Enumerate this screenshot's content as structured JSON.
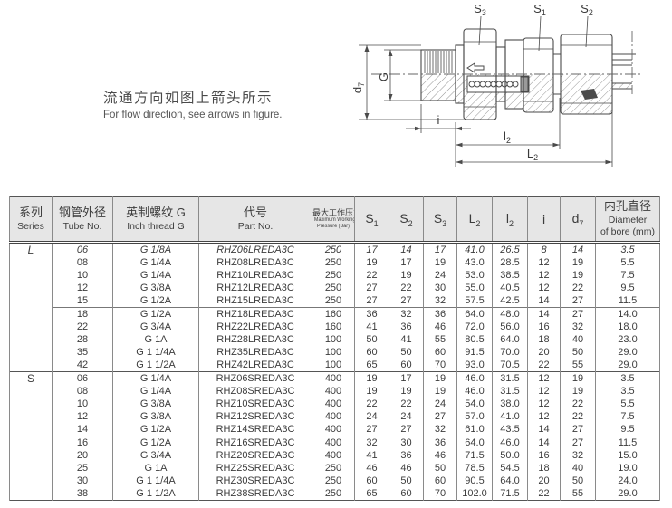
{
  "colors": {
    "header_bg": "#e6e6e6",
    "table_line": "#8a8a8a",
    "text": "#3c3c3c",
    "drawing_line": "#4a4a4a"
  },
  "note": {
    "zh": "流通方向如图上箭头所示",
    "en": "For flow direction, see arrows in figure."
  },
  "diagram": {
    "labels": {
      "s3": {
        "base": "S",
        "sub": "3"
      },
      "s1": {
        "base": "S",
        "sub": "1"
      },
      "s2": {
        "base": "S",
        "sub": "2"
      },
      "d7": {
        "base": "d",
        "sub": "7"
      },
      "g": {
        "base": "G",
        "sub": ""
      },
      "i": {
        "base": "i",
        "sub": ""
      },
      "l2": {
        "base": "l",
        "sub": "2"
      },
      "L2": {
        "base": "L",
        "sub": "2"
      }
    }
  },
  "table": {
    "columns": [
      {
        "zh": "系列",
        "en": "Series"
      },
      {
        "zh": "钢管外径",
        "en": "Tube No."
      },
      {
        "zh": "英制螺纹 G",
        "en": "Inch thread G"
      },
      {
        "zh": "代号",
        "en": "Part No."
      },
      {
        "zh": "最大工作压力",
        "en": "Maximum Working",
        "en2": "Pressure (Bar)",
        "small": true
      },
      {
        "base": "S",
        "sub": "1"
      },
      {
        "base": "S",
        "sub": "2"
      },
      {
        "base": "S",
        "sub": "3"
      },
      {
        "base": "L",
        "sub": "2"
      },
      {
        "base": "l",
        "sub": "2"
      },
      {
        "base": "i",
        "sub": ""
      },
      {
        "base": "d",
        "sub": "7"
      },
      {
        "zh": "内孔直径",
        "en": "Diameter",
        "en2": "of bore (mm)"
      }
    ],
    "groups": [
      {
        "series": "L",
        "blocks": [
          {
            "rows": [
              {
                "italic": true,
                "cells": [
                  "06",
                  "G 1/8A",
                  "RHZ06LREDA3C",
                  "250",
                  "17",
                  "14",
                  "17",
                  "41.0",
                  "26.5",
                  "8",
                  "14",
                  "3.5"
                ]
              },
              {
                "cells": [
                  "08",
                  "G 1/4A",
                  "RHZ08LREDA3C",
                  "250",
                  "19",
                  "17",
                  "19",
                  "43.0",
                  "28.5",
                  "12",
                  "19",
                  "5.5"
                ]
              },
              {
                "cells": [
                  "10",
                  "G 1/4A",
                  "RHZ10LREDA3C",
                  "250",
                  "22",
                  "19",
                  "24",
                  "53.0",
                  "38.5",
                  "12",
                  "19",
                  "7.5"
                ]
              },
              {
                "cells": [
                  "12",
                  "G 3/8A",
                  "RHZ12LREDA3C",
                  "250",
                  "27",
                  "22",
                  "30",
                  "55.0",
                  "40.5",
                  "12",
                  "22",
                  "9.5"
                ]
              },
              {
                "cells": [
                  "15",
                  "G 1/2A",
                  "RHZ15LREDA3C",
                  "250",
                  "27",
                  "27",
                  "32",
                  "57.5",
                  "42.5",
                  "14",
                  "27",
                  "11.5"
                ]
              }
            ]
          },
          {
            "rows": [
              {
                "cells": [
                  "18",
                  "G 1/2A",
                  "RHZ18LREDA3C",
                  "160",
                  "36",
                  "32",
                  "36",
                  "64.0",
                  "48.0",
                  "14",
                  "27",
                  "14.0"
                ]
              },
              {
                "cells": [
                  "22",
                  "G 3/4A",
                  "RHZ22LREDA3C",
                  "160",
                  "41",
                  "36",
                  "46",
                  "72.0",
                  "56.0",
                  "16",
                  "32",
                  "18.0"
                ]
              },
              {
                "cells": [
                  "28",
                  "G 1A",
                  "RHZ28LREDA3C",
                  "100",
                  "50",
                  "41",
                  "55",
                  "80.5",
                  "64.0",
                  "18",
                  "40",
                  "23.0"
                ]
              },
              {
                "cells": [
                  "35",
                  "G 1 1/4A",
                  "RHZ35LREDA3C",
                  "100",
                  "60",
                  "50",
                  "60",
                  "91.5",
                  "70.0",
                  "20",
                  "50",
                  "29.0"
                ]
              },
              {
                "cells": [
                  "42",
                  "G 1 1/2A",
                  "RHZ42LREDA3C",
                  "100",
                  "65",
                  "60",
                  "70",
                  "93.0",
                  "70.5",
                  "22",
                  "55",
                  "29.0"
                ]
              }
            ]
          }
        ]
      },
      {
        "series": "S",
        "blocks": [
          {
            "rows": [
              {
                "cells": [
                  "06",
                  "G 1/4A",
                  "RHZ06SREDA3C",
                  "400",
                  "19",
                  "17",
                  "19",
                  "46.0",
                  "31.5",
                  "12",
                  "19",
                  "3.5"
                ]
              },
              {
                "cells": [
                  "08",
                  "G 1/4A",
                  "RHZ08SREDA3C",
                  "400",
                  "19",
                  "19",
                  "19",
                  "46.0",
                  "31.5",
                  "12",
                  "19",
                  "3.5"
                ]
              },
              {
                "cells": [
                  "10",
                  "G 3/8A",
                  "RHZ10SREDA3C",
                  "400",
                  "22",
                  "22",
                  "24",
                  "54.0",
                  "38.0",
                  "12",
                  "22",
                  "5.5"
                ]
              },
              {
                "cells": [
                  "12",
                  "G 3/8A",
                  "RHZ12SREDA3C",
                  "400",
                  "24",
                  "24",
                  "27",
                  "57.0",
                  "41.0",
                  "12",
                  "22",
                  "7.5"
                ]
              },
              {
                "cells": [
                  "14",
                  "G 1/2A",
                  "RHZ14SREDA3C",
                  "400",
                  "27",
                  "27",
                  "32",
                  "61.0",
                  "43.5",
                  "14",
                  "27",
                  "9.5"
                ]
              }
            ]
          },
          {
            "rows": [
              {
                "cells": [
                  "16",
                  "G 1/2A",
                  "RHZ16SREDA3C",
                  "400",
                  "32",
                  "30",
                  "36",
                  "64.0",
                  "46.0",
                  "14",
                  "27",
                  "11.5"
                ]
              },
              {
                "cells": [
                  "20",
                  "G 3/4A",
                  "RHZ20SREDA3C",
                  "400",
                  "41",
                  "36",
                  "46",
                  "71.5",
                  "50.0",
                  "16",
                  "32",
                  "15.0"
                ]
              },
              {
                "cells": [
                  "25",
                  "G 1A",
                  "RHZ25SREDA3C",
                  "250",
                  "46",
                  "46",
                  "50",
                  "78.5",
                  "54.5",
                  "18",
                  "40",
                  "19.0"
                ]
              },
              {
                "cells": [
                  "30",
                  "G 1 1/4A",
                  "RHZ30SREDA3C",
                  "250",
                  "60",
                  "50",
                  "60",
                  "90.5",
                  "64.0",
                  "20",
                  "50",
                  "24.0"
                ]
              },
              {
                "cells": [
                  "38",
                  "G 1 1/2A",
                  "RHZ38SREDA3C",
                  "250",
                  "65",
                  "60",
                  "70",
                  "102.0",
                  "71.5",
                  "22",
                  "55",
                  "29.0"
                ]
              }
            ]
          }
        ]
      }
    ]
  }
}
